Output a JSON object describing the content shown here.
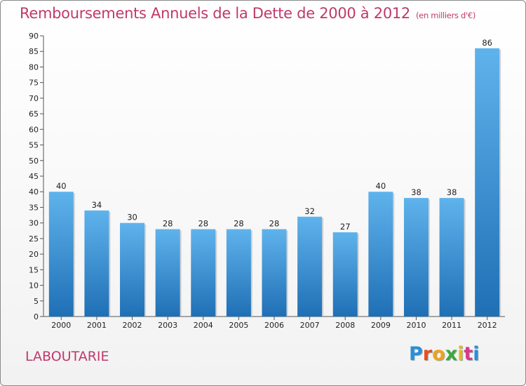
{
  "title": "Remboursements Annuels de la Dette de 2000 à 2012",
  "subtitle": "(en milliers d'€)",
  "commune": "LABOUTARIE",
  "logo": {
    "letters": [
      "P",
      "r",
      "o",
      "x",
      "i",
      "t",
      "i"
    ],
    "colors": [
      "#2a8fd8",
      "#e84e1b",
      "#f0a21c",
      "#3da83a",
      "#e8b71c",
      "#d63a8a",
      "#2a8fd8"
    ]
  },
  "colors": {
    "bar": "#3a94d8",
    "title": "#c0396b"
  },
  "chart_data": {
    "type": "bar",
    "categories": [
      "2000",
      "2001",
      "2002",
      "2003",
      "2004",
      "2005",
      "2006",
      "2007",
      "2008",
      "2009",
      "2010",
      "2011",
      "2012"
    ],
    "values": [
      40,
      34,
      30,
      28,
      28,
      28,
      28,
      32,
      27,
      40,
      38,
      38,
      86
    ],
    "ylim": [
      0,
      90
    ],
    "ytick_step": 5,
    "grid": false
  }
}
